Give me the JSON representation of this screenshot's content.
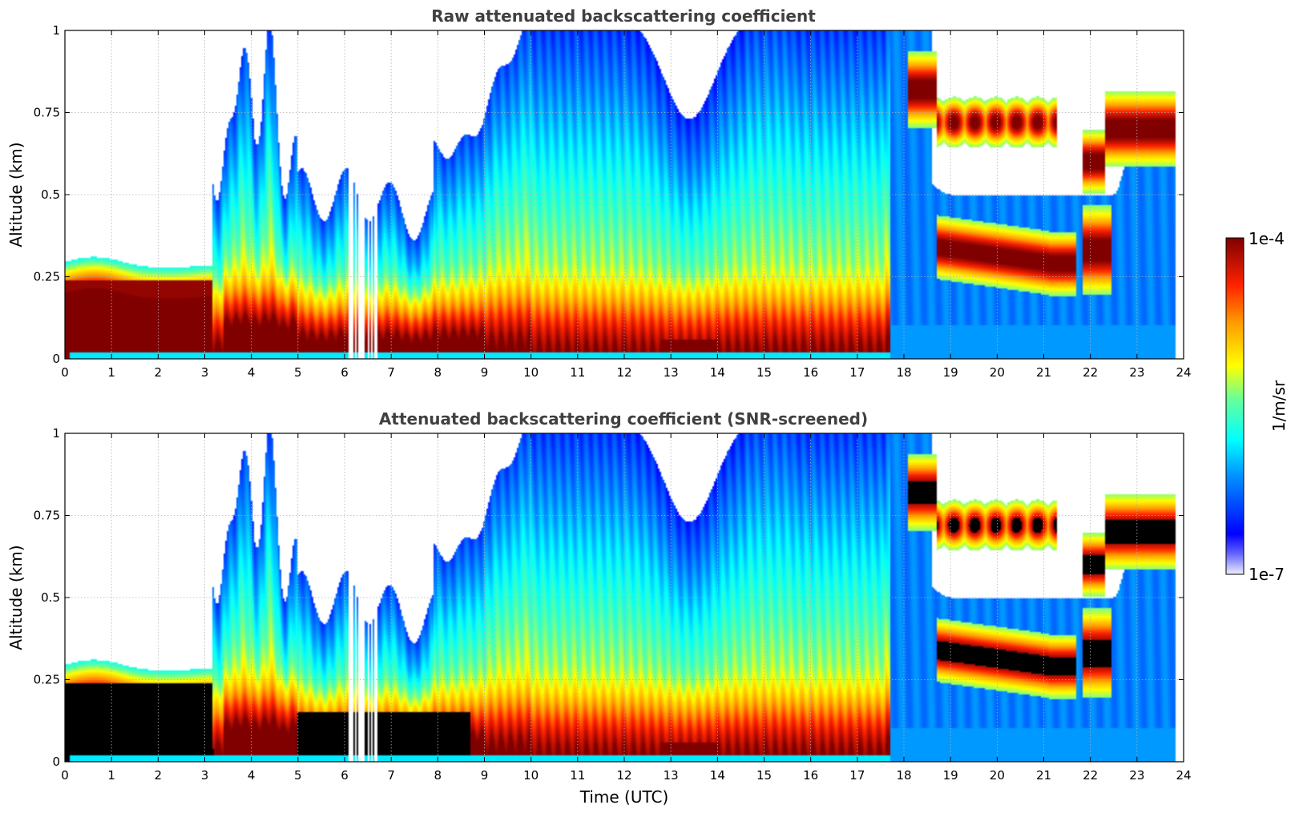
{
  "chart_data": [
    {
      "type": "heatmap",
      "title": "Raw attenuated backscattering coefficient",
      "xlabel": "",
      "ylabel": "Altitude (km)",
      "xlim": [
        0,
        24
      ],
      "ylim": [
        0,
        1
      ],
      "xticks": [
        "0",
        "1",
        "2",
        "3",
        "4",
        "5",
        "6",
        "7",
        "8",
        "9",
        "10",
        "11",
        "12",
        "13",
        "14",
        "15",
        "16",
        "17",
        "18",
        "19",
        "20",
        "21",
        "22",
        "23",
        "24"
      ],
      "yticks": [
        "0",
        "0.25",
        "0.5",
        "0.75",
        "1"
      ],
      "grid": true,
      "screened": false
    },
    {
      "type": "heatmap",
      "title": "Attenuated backscattering coefficient (SNR-screened)",
      "xlabel": "Time (UTC)",
      "ylabel": "Altitude (km)",
      "xlim": [
        0,
        24
      ],
      "ylim": [
        0,
        1
      ],
      "xticks": [
        "0",
        "1",
        "2",
        "3",
        "4",
        "5",
        "6",
        "7",
        "8",
        "9",
        "10",
        "11",
        "12",
        "13",
        "14",
        "15",
        "16",
        "17",
        "18",
        "19",
        "20",
        "21",
        "22",
        "23",
        "24"
      ],
      "yticks": [
        "0",
        "0.25",
        "0.5",
        "0.75",
        "1"
      ],
      "grid": true,
      "screened": true
    }
  ],
  "colorbar": {
    "label": "1/m/sr",
    "max_label": "1e-4",
    "min_label": "1e-7",
    "scale": "log",
    "colormap": "jet"
  }
}
